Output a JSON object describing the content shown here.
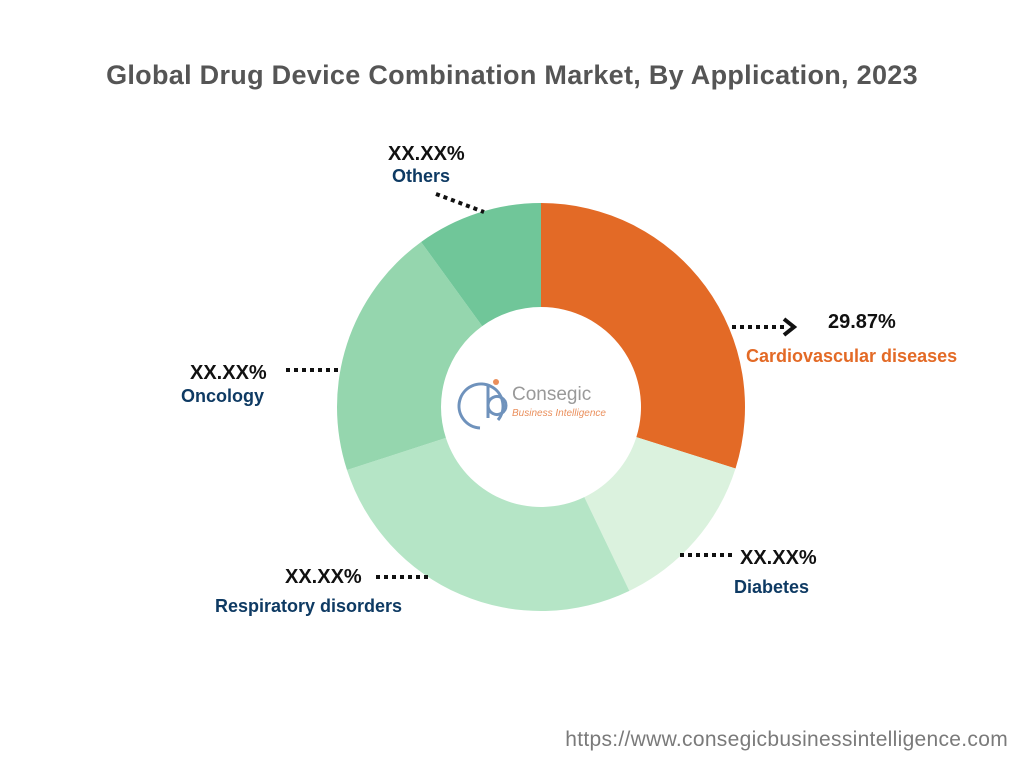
{
  "chart_data": {
    "type": "pie",
    "variant": "donut",
    "title": "Global Drug Device Combination Market, By Application, 2023",
    "categories": [
      "Cardiovascular diseases",
      "Diabetes",
      "Respiratory disorders",
      "Oncology",
      "Others"
    ],
    "values": [
      29.87,
      13.0,
      27.13,
      20.0,
      10.0
    ],
    "labels": [
      "29.87%",
      "XX.XX%",
      "XX.XX%",
      "XX.XX%",
      "XX.XX%"
    ],
    "colors": [
      "#E36A26",
      "#DBF2DE",
      "#B5E5C6",
      "#95D6AE",
      "#70C699"
    ],
    "label_colors": [
      "#E36A26",
      "#0E3A63",
      "#0E3A63",
      "#0E3A63",
      "#0E3A63"
    ]
  },
  "watermark": {
    "brand": "Consegic",
    "tagline": "Business Intelligence"
  },
  "footer": {
    "url": "https://www.consegicbusinessintelligence.com"
  }
}
